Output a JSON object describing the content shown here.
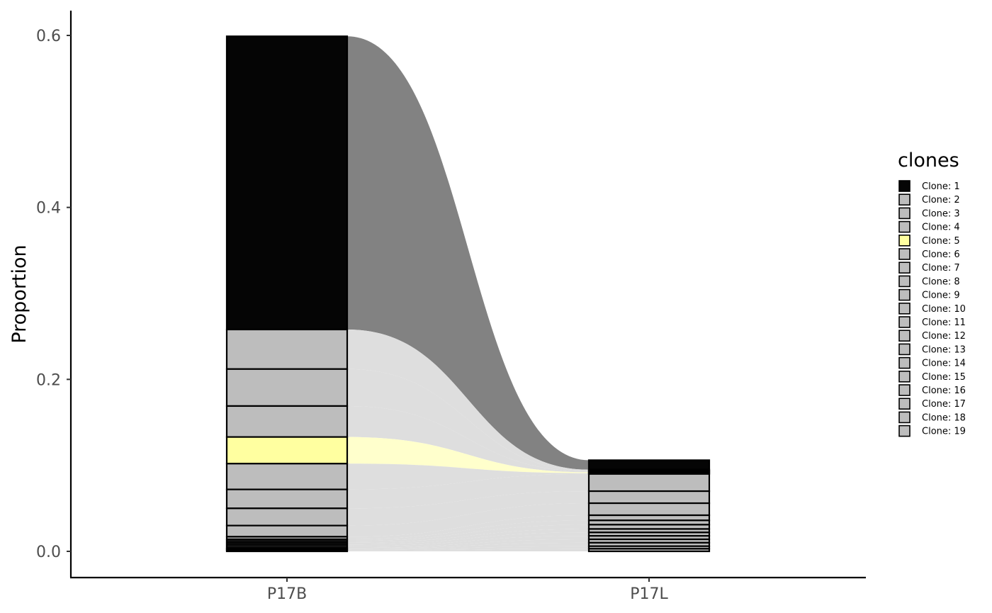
{
  "chart_data": {
    "type": "alluvial",
    "title": "",
    "xlabel": "",
    "ylabel": "Proportion",
    "ylim": [
      -0.03,
      0.63
    ],
    "yticks": [
      0.0,
      0.2,
      0.4,
      0.6
    ],
    "ytick_labels": [
      "0.0",
      "0.2",
      "0.4",
      "0.6"
    ],
    "categories": [
      "P17B",
      "P17L"
    ],
    "legend": {
      "title": "clones",
      "position": "right"
    },
    "colors": {
      "Clone: 1": "#050505",
      "Clone: 5": "#ffffa0",
      "default": "#bdbdbd"
    },
    "ribbon_colors": {
      "Clone: 1": "#828282",
      "Clone: 5": "#ffffcc",
      "default": "#dedede"
    },
    "series": [
      {
        "name": "Clone: 1",
        "values": [
          0.341,
          0.011
        ]
      },
      {
        "name": "Clone: 2",
        "values": [
          0.046,
          0.001
        ]
      },
      {
        "name": "Clone: 3",
        "values": [
          0.043,
          0.001
        ]
      },
      {
        "name": "Clone: 4",
        "values": [
          0.036,
          0.001
        ]
      },
      {
        "name": "Clone: 5",
        "values": [
          0.031,
          0.001
        ]
      },
      {
        "name": "Clone: 6",
        "values": [
          0.03,
          0.001
        ]
      },
      {
        "name": "Clone: 7",
        "values": [
          0.022,
          0.02
        ]
      },
      {
        "name": "Clone: 8",
        "values": [
          0.02,
          0.014
        ]
      },
      {
        "name": "Clone: 9",
        "values": [
          0.013,
          0.014
        ]
      },
      {
        "name": "Clone: 10",
        "values": [
          0.003,
          0.006
        ]
      },
      {
        "name": "Clone: 11",
        "values": [
          0.002,
          0.005
        ]
      },
      {
        "name": "Clone: 12",
        "values": [
          0.002,
          0.005
        ]
      },
      {
        "name": "Clone: 13",
        "values": [
          0.002,
          0.004
        ]
      },
      {
        "name": "Clone: 14",
        "values": [
          0.002,
          0.004
        ]
      },
      {
        "name": "Clone: 15",
        "values": [
          0.002,
          0.004
        ]
      },
      {
        "name": "Clone: 16",
        "values": [
          0.001,
          0.004
        ]
      },
      {
        "name": "Clone: 17",
        "values": [
          0.001,
          0.004
        ]
      },
      {
        "name": "Clone: 18",
        "values": [
          0.001,
          0.003
        ]
      },
      {
        "name": "Clone: 19",
        "values": [
          0.001,
          0.003
        ]
      }
    ]
  }
}
